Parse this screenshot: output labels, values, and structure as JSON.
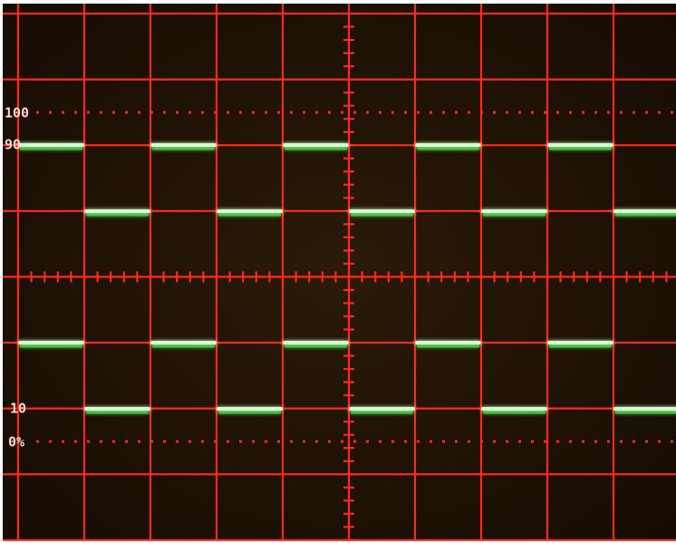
{
  "graticule": {
    "labels": [
      "100",
      "90",
      "10",
      "0%"
    ]
  }
}
